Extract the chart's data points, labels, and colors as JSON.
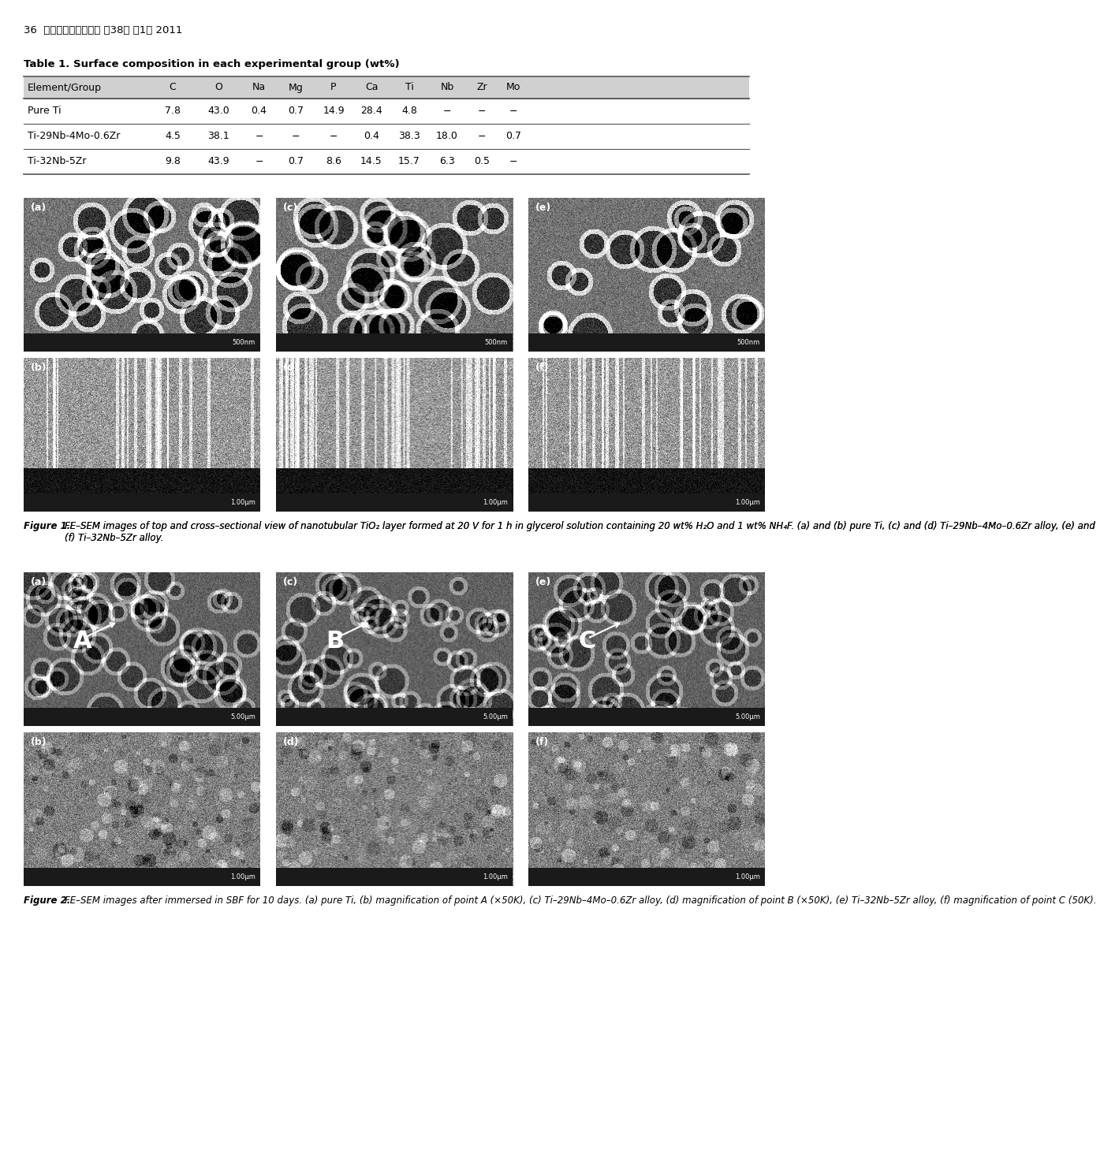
{
  "page_title": "36  대한치과기재학회지 제38권 제1호 2011",
  "table_title": "Table 1. Surface composition in each experimental group (wt%)",
  "table_headers": [
    "Element/Group",
    "C",
    "O",
    "Na",
    "Mg",
    "P",
    "Ca",
    "Ti",
    "Nb",
    "Zr",
    "Mo"
  ],
  "table_rows": [
    [
      "Pure Ti",
      "7.8",
      "43.0",
      "0.4",
      "0.7",
      "14.9",
      "28.4",
      "4.8",
      "−",
      "−",
      "−"
    ],
    [
      "Ti-29Nb-4Mo-0.6Zr",
      "4.5",
      "38.1",
      "−",
      "−",
      "−",
      "0.4",
      "38.3",
      "18.0",
      "−",
      "0.7"
    ],
    [
      "Ti-32Nb-5Zr",
      "9.8",
      "43.9",
      "−",
      "0.7",
      "8.6",
      "14.5",
      "15.7",
      "6.3",
      "0.5",
      "−"
    ]
  ],
  "fig1_caption": "Figure 1. FE–SEM images of top and cross-sectional view of nanotubular TiO₂ layer formed at 20 V for 1 h in glycerol solution containing 20 wt% H₂O and 1 wt% NH₄F. (a) and (b) pure Ti, (c) and (d) Ti–29Nb–4Mo–0.6Zr alloy, (e) and (f) Ti–32Nb–5Zr alloy.",
  "fig2_caption": "Figure 2. FE–SEM images after immersed in SBF for 10 days. (a) pure Ti, (b) magnification of point A (×50K), (c) Ti–29Nb–4Mo–0.6Zr alloy, (d) magnification of point B (×50K), (e) Ti–32Nb–5Zr alloy, (f) magnification of point C (50K).",
  "bg_color": "#ffffff",
  "header_bg": "#d0d0d0",
  "table_line_color": "#555555",
  "text_color": "#000000",
  "fig1_labels": [
    "(a)",
    "(b)",
    "(c)",
    "(d)",
    "(e)",
    "(f)"
  ],
  "fig2_labels": [
    "(a)",
    "(b)",
    "(c)",
    "(d)",
    "(e)",
    "(f)"
  ],
  "fig2_letters": [
    "A",
    "B",
    "C"
  ]
}
